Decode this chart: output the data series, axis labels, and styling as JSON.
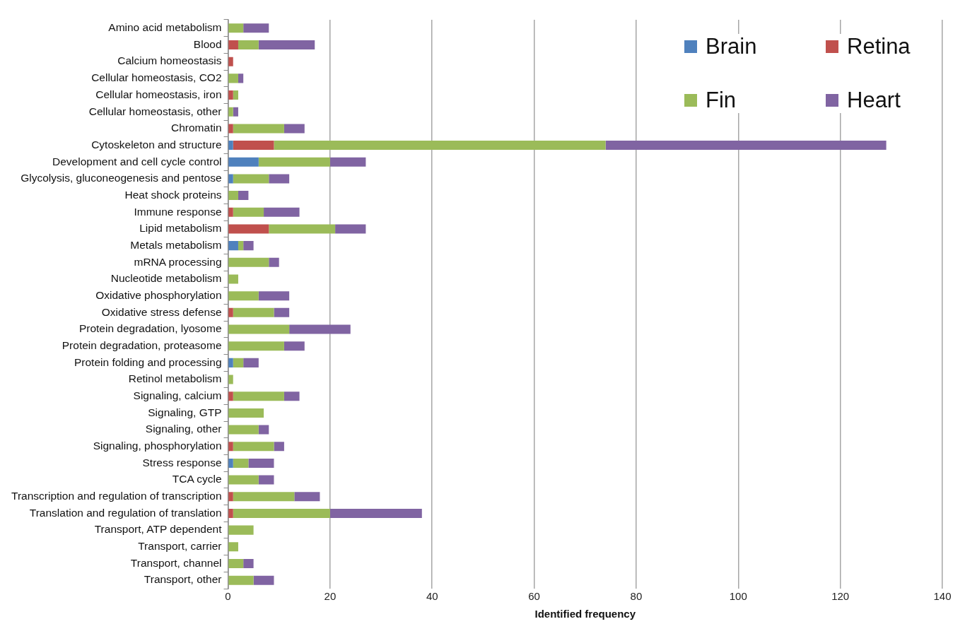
{
  "chart_data": {
    "type": "bar",
    "orientation": "horizontal",
    "stacked": true,
    "xlabel": "Identified frequency",
    "categories": [
      "Amino acid metabolism",
      "Blood",
      "Calcium homeostasis",
      "Cellular homeostasis, CO2",
      "Cellular homeostasis, iron",
      "Cellular homeostasis, other",
      "Chromatin",
      "Cytoskeleton and structure",
      "Development and cell cycle control",
      "Glycolysis, gluconeogenesis and pentose",
      "Heat shock proteins",
      "Immune response",
      "Lipid metabolism",
      "Metals metabolism",
      "mRNA processing",
      "Nucleotide metabolism",
      "Oxidative phosphorylation",
      "Oxidative stress defense",
      "Protein degradation, lyosome",
      "Protein degradation, proteasome",
      "Protein folding and processing",
      "Retinol metabolism",
      "Signaling, calcium",
      "Signaling, GTP",
      "Signaling, other",
      "Signaling, phosphorylation",
      "Stress response",
      "TCA cycle",
      "Transcription and regulation of transcription",
      "Translation and regulation of translation",
      "Transport, ATP dependent",
      "Transport, carrier",
      "Transport, channel",
      "Transport, other"
    ],
    "series": [
      {
        "name": "Brain",
        "color": "#4f81bd",
        "values": [
          0,
          0,
          0,
          0,
          0,
          0,
          0,
          1,
          6,
          1,
          0,
          0,
          0,
          2,
          0,
          0,
          0,
          0,
          0,
          0,
          1,
          0,
          0,
          0,
          0,
          0,
          1,
          0,
          0,
          0,
          0,
          0,
          0,
          0
        ]
      },
      {
        "name": "Retina",
        "color": "#c0504d",
        "values": [
          0,
          2,
          1,
          0,
          1,
          0,
          1,
          8,
          0,
          0,
          0,
          1,
          8,
          0,
          0,
          0,
          0,
          1,
          0,
          0,
          0,
          0,
          1,
          0,
          0,
          1,
          0,
          0,
          1,
          1,
          0,
          0,
          0,
          0
        ]
      },
      {
        "name": "Fin",
        "color": "#9bbb59",
        "values": [
          3,
          4,
          0,
          2,
          1,
          1,
          10,
          65,
          14,
          7,
          2,
          6,
          13,
          1,
          8,
          2,
          6,
          8,
          12,
          11,
          2,
          1,
          10,
          7,
          6,
          8,
          3,
          6,
          12,
          19,
          5,
          2,
          3,
          5
        ]
      },
      {
        "name": "Heart",
        "color": "#8064a2",
        "values": [
          5,
          11,
          0,
          1,
          0,
          1,
          4,
          55,
          7,
          4,
          2,
          7,
          6,
          2,
          2,
          0,
          6,
          3,
          12,
          4,
          3,
          0,
          3,
          0,
          2,
          2,
          5,
          3,
          5,
          18,
          0,
          0,
          2,
          4
        ]
      }
    ],
    "xlim": [
      0,
      140
    ],
    "xticks": [
      0,
      20,
      40,
      60,
      80,
      100,
      120,
      140
    ],
    "grid": "x",
    "legend": "top right"
  }
}
